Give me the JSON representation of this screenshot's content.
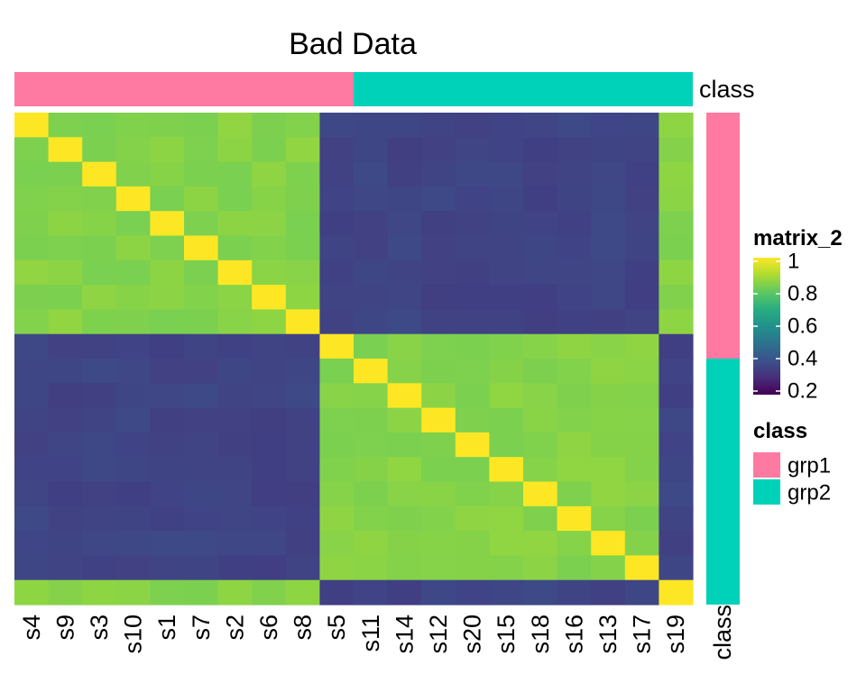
{
  "chart_data": {
    "type": "heatmap",
    "title": "Bad Data",
    "labels": [
      "s4",
      "s9",
      "s3",
      "s10",
      "s1",
      "s7",
      "s2",
      "s6",
      "s8",
      "s5",
      "s11",
      "s14",
      "s12",
      "s20",
      "s15",
      "s18",
      "s16",
      "s13",
      "s17",
      "s19"
    ],
    "annotation": {
      "name": "class",
      "values": [
        "grp1",
        "grp1",
        "grp1",
        "grp1",
        "grp1",
        "grp1",
        "grp1",
        "grp1",
        "grp1",
        "grp1",
        "grp2",
        "grp2",
        "grp2",
        "grp2",
        "grp2",
        "grp2",
        "grp2",
        "grp2",
        "grp2",
        "grp2"
      ],
      "colors": {
        "grp1": "#FF7AA2",
        "grp2": "#00D1B9"
      }
    },
    "color_legend": {
      "title": "matrix_2",
      "range": [
        0.2,
        1.0
      ],
      "ticks": [
        "1",
        "0.8",
        "0.6",
        "0.4",
        "0.2"
      ]
    },
    "class_legend": {
      "title": "class",
      "items": [
        {
          "label": "grp1",
          "color": "#FF7AA2"
        },
        {
          "label": "grp2",
          "color": "#00D1B9"
        }
      ]
    },
    "groups": {
      "A": [
        "s4",
        "s9",
        "s3",
        "s10",
        "s1",
        "s7",
        "s2",
        "s6",
        "s8",
        "s19"
      ],
      "B": [
        "s5",
        "s11",
        "s14",
        "s12",
        "s20",
        "s15",
        "s18",
        "s16",
        "s13",
        "s17"
      ]
    },
    "within_group_value": 0.85,
    "between_group_value": 0.36,
    "diagonal_value": 1.0
  }
}
